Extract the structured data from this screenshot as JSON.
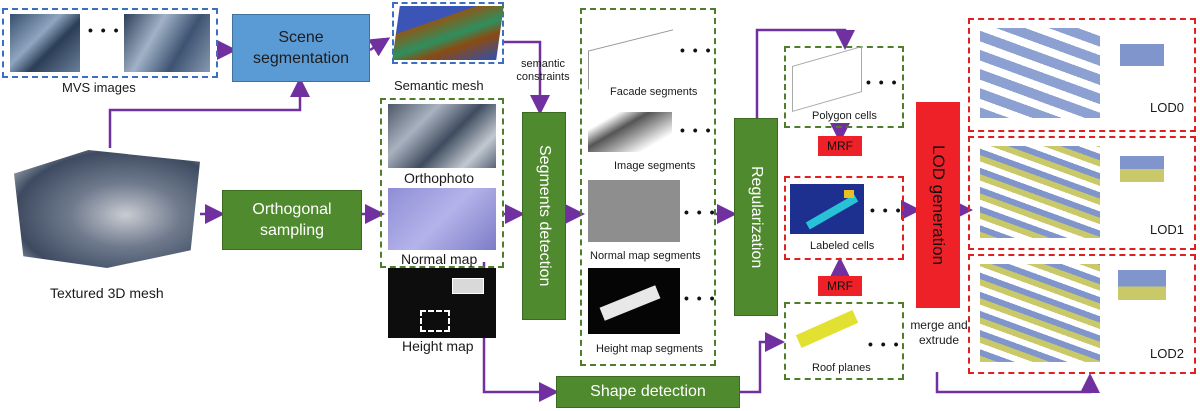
{
  "inputs": {
    "mvs_label": "MVS images",
    "mesh_label": "Textured 3D mesh"
  },
  "process": {
    "scene_segmentation": "Scene segmentation",
    "orthogonal_sampling": "Orthogonal sampling",
    "segments_detection": "Segments detection",
    "regularization": "Regularization",
    "shape_detection": "Shape detection",
    "lod_generation": "LOD generation",
    "mrf_top": "MRF",
    "mrf_bottom": "MRF"
  },
  "labels": {
    "semantic_mesh": "Semantic mesh",
    "semantic_constraints": "semantic constraints",
    "orthophoto": "Orthophoto",
    "normal_map": "Normal map",
    "height_map": "Height map",
    "facade_segments": "Facade segments",
    "image_segments": "Image segments",
    "normal_map_segments": "Normal map segments",
    "height_map_segments": "Height map segments",
    "polygon_cells": "Polygon cells",
    "labeled_cells": "Labeled cells",
    "roof_planes": "Roof planes",
    "merge_and_extrude": "merge and extrude"
  },
  "lod_outputs": [
    "LOD0",
    "LOD1",
    "LOD2"
  ],
  "ellipsis": "• • •",
  "colors": {
    "blue_box": "#5b9bd5",
    "green_box": "#4f8a2e",
    "red_box": "#ee2028",
    "arrow": "#7030a0",
    "dash_blue": "#3a6fc2",
    "dash_green": "#4e7e2c",
    "dash_red": "#e02020"
  }
}
